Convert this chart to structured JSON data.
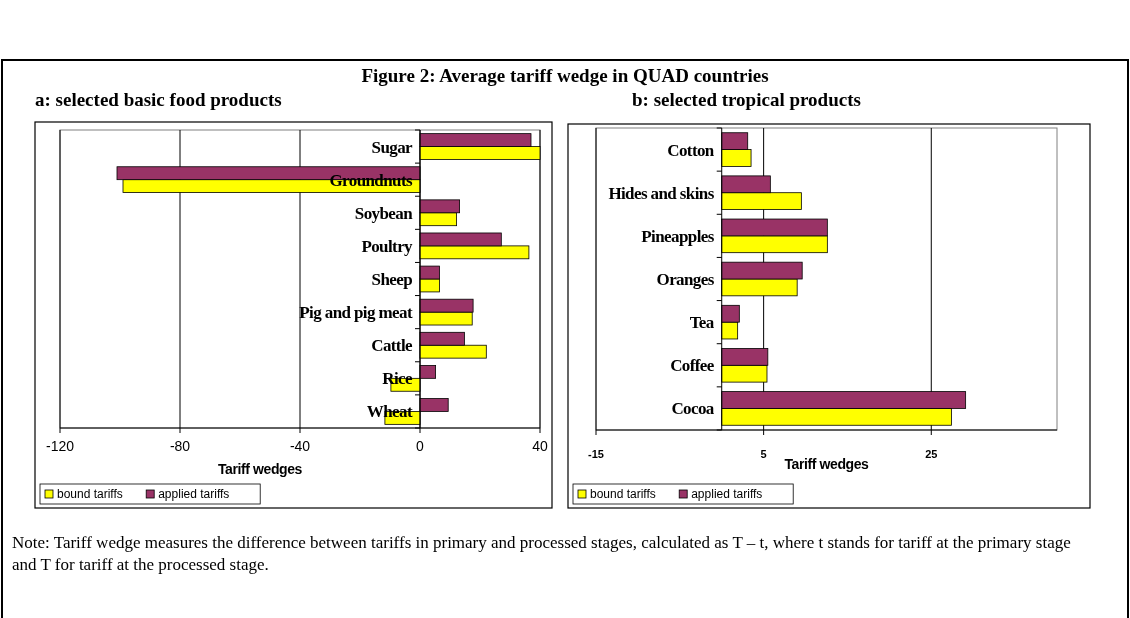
{
  "chart_data": [
    {
      "type": "bar",
      "orientation": "horizontal",
      "title": "Figure 2: Average tariff wedge in QUAD countries",
      "subtitle": "a:  selected basic food products",
      "xlabel": "Tariff wedges",
      "categories": [
        "Sugar",
        "Groundnuts",
        "Soybean",
        "Poultry",
        "Sheep",
        "Pig and pig meat",
        "Cattle",
        "Rice",
        "Wheat"
      ],
      "series": [
        {
          "name": "bound tariffs",
          "color": "#ffff00",
          "values": [
            40,
            -99,
            12.2,
            36.3,
            6.5,
            17.4,
            22.1,
            -9.7,
            -11.7
          ]
        },
        {
          "name": "applied tariffs",
          "color": "#993366",
          "values": [
            37,
            -101,
            13.2,
            27.1,
            6.5,
            17.7,
            14.8,
            5.2,
            9.4
          ]
        }
      ],
      "xlim": [
        -120,
        40
      ],
      "xticks": [
        -120,
        -80,
        -40,
        0,
        40
      ],
      "grid": "x",
      "legend": "bottom left",
      "annotations": [
        "Note: Tariff wedge measures the difference between tariffs in primary and processed stages, calculated as T – t, where t stands for tariff at the primary stage and T for tariff at the processed stage."
      ]
    },
    {
      "type": "bar",
      "orientation": "horizontal",
      "title": "b:   selected tropical products",
      "xlabel": "Tariff wedges",
      "categories": [
        "Cotton",
        "Hides and skins",
        "Pineapples",
        "Oranges",
        "Tea",
        "Coffee",
        "Cocoa"
      ],
      "series": [
        {
          "name": "bound tariffs",
          "color": "#ffff00",
          "values": [
            3.5,
            9.5,
            12.6,
            9.0,
            1.9,
            5.4,
            27.4
          ]
        },
        {
          "name": "applied tariffs",
          "color": "#993366",
          "values": [
            3.1,
            5.8,
            12.6,
            9.6,
            2.1,
            5.5,
            29.1
          ]
        }
      ],
      "xlim": [
        -15,
        40
      ],
      "xticks": [
        -15,
        5,
        25
      ],
      "grid": "x",
      "legend": "bottom left"
    }
  ]
}
